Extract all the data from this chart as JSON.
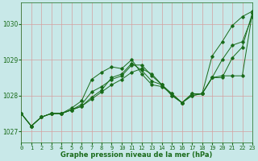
{
  "xlabel": "Graphe pression niveau de la mer (hPa)",
  "bg_color": "#c8e8e8",
  "grid_color": "#d4a0a0",
  "line_color": "#1a6b1a",
  "ylim": [
    1026.7,
    1030.6
  ],
  "xlim": [
    0,
    23
  ],
  "yticks": [
    1027,
    1028,
    1029,
    1030
  ],
  "xticks": [
    0,
    1,
    2,
    3,
    4,
    5,
    6,
    7,
    8,
    9,
    10,
    11,
    12,
    13,
    14,
    15,
    16,
    17,
    18,
    19,
    20,
    21,
    22,
    23
  ],
  "series": [
    [
      1027.5,
      1027.15,
      1027.4,
      1027.5,
      1027.5,
      1027.6,
      1027.75,
      1028.1,
      1028.25,
      1028.45,
      1028.55,
      1028.85,
      1028.85,
      1028.55,
      1028.3,
      1028.0,
      1027.8,
      1028.0,
      1028.05,
      1029.1,
      1029.5,
      1029.95,
      1030.2,
      1030.35
    ],
    [
      1027.5,
      1027.15,
      1027.4,
      1027.5,
      1027.5,
      1027.65,
      1027.85,
      1028.45,
      1028.65,
      1028.8,
      1028.75,
      1029.0,
      1028.6,
      1028.3,
      1028.25,
      1028.05,
      1027.8,
      1028.05,
      1028.05,
      1028.5,
      1029.0,
      1029.4,
      1029.5,
      1030.2
    ],
    [
      1027.5,
      1027.15,
      1027.4,
      1027.5,
      1027.5,
      1027.6,
      1027.7,
      1027.95,
      1028.15,
      1028.5,
      1028.6,
      1028.9,
      1028.7,
      1028.4,
      1028.3,
      1028.05,
      1027.8,
      1028.05,
      1028.05,
      1028.5,
      1028.55,
      1028.55,
      1028.55,
      1030.3
    ],
    [
      1027.5,
      1027.15,
      1027.4,
      1027.5,
      1027.5,
      1027.6,
      1027.7,
      1027.9,
      1028.1,
      1028.3,
      1028.45,
      1028.65,
      1028.75,
      1028.6,
      1028.3,
      1028.0,
      1027.8,
      1028.0,
      1028.05,
      1028.5,
      1028.5,
      1029.05,
      1029.35,
      1030.3
    ]
  ],
  "marker": "D",
  "markersize": 1.8,
  "linewidth": 0.7,
  "tick_fontsize": 5.0,
  "xlabel_fontsize": 6.0
}
